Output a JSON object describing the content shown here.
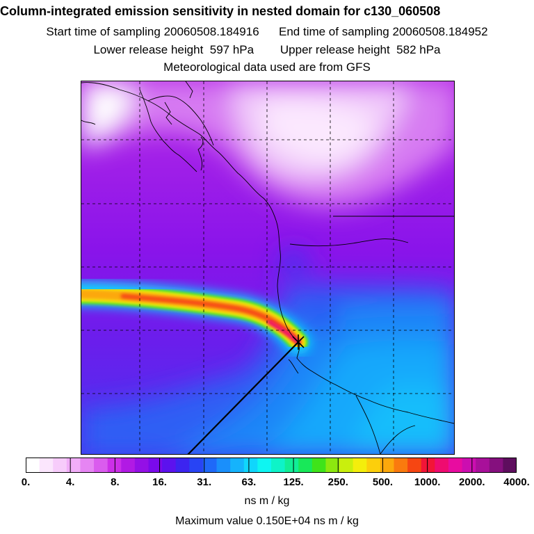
{
  "header": {
    "title": "Column-integrated emission sensitivity in nested domain for c130_060508",
    "start_label": "Start time of sampling",
    "start_value": "20060508.184916",
    "end_label": "End time of sampling",
    "end_value": "20060508.184952",
    "lower_label": "Lower release height",
    "lower_value": "597 hPa",
    "upper_label": "Upper release height",
    "upper_value": "582 hPa",
    "met_text": "Meteorological data used are from GFS"
  },
  "colorbar": {
    "colors": [
      "#ffffff",
      "#fbe6fd",
      "#f7ccfb",
      "#f1aef8",
      "#e685f3",
      "#da5cee",
      "#cc2fe8",
      "#b11ae4",
      "#9410e6",
      "#7a0aeb",
      "#5c12ee",
      "#3c24f0",
      "#2844f4",
      "#1f69f8",
      "#1a8ffb",
      "#15b3fc",
      "#10d6fc",
      "#0ef5f2",
      "#0ef3c8",
      "#11ee96",
      "#18e859",
      "#3fe31a",
      "#8ce80f",
      "#c9ef0d",
      "#f4ee0c",
      "#fccf0c",
      "#fca80c",
      "#fa7a0e",
      "#f64612",
      "#f21537",
      "#ef0c70",
      "#e80ca0",
      "#cc0eb0",
      "#a8109a",
      "#85107e",
      "#5e0e5e"
    ],
    "tick_labels": [
      "0.",
      "4.",
      "8.",
      "16.",
      "31.",
      "63.",
      "125.",
      "250.",
      "500.",
      "1000.",
      "2000.",
      "4000."
    ],
    "units": "ns m / kg"
  },
  "max_value_text": "Maximum value  0.150E+04 ns m / kg"
}
